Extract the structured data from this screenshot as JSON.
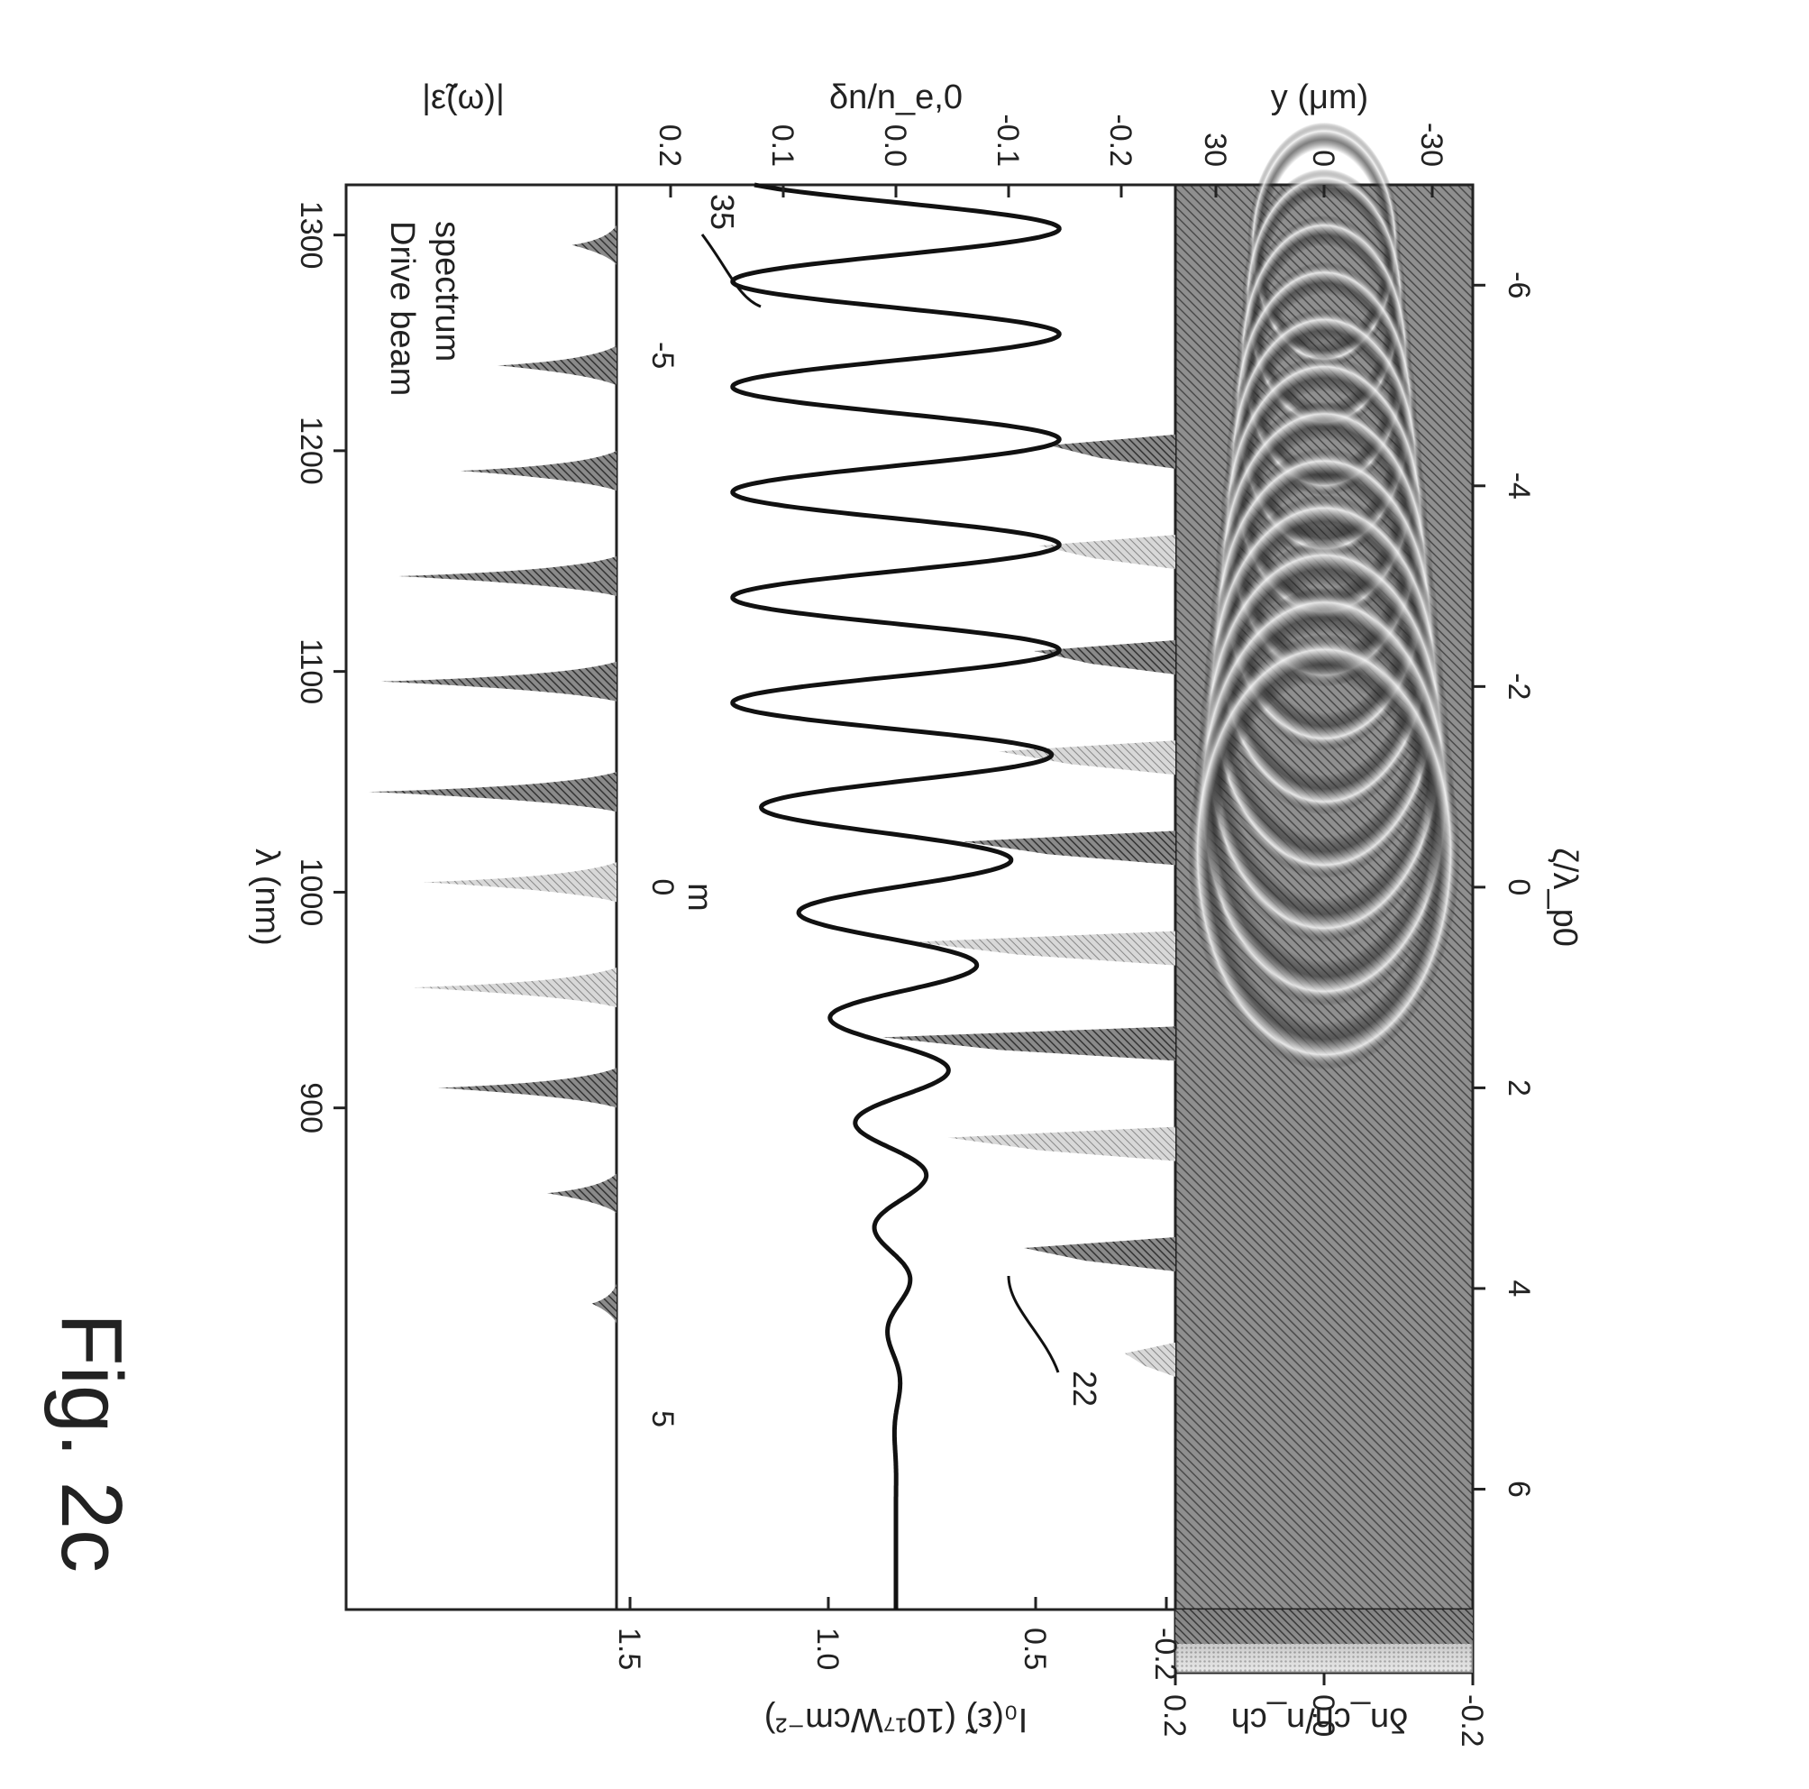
{
  "figure": {
    "title": "Fig. 2c"
  },
  "chart_data": [
    {
      "panel": "drive-beam-spectrum",
      "type": "area",
      "annotation": "Drive beam spectrum",
      "x_top_label": "λ (nm)",
      "x_top_ticks": [
        1300,
        1200,
        1100,
        1000,
        900
      ],
      "ylabel": "|ε̃(ω)|",
      "series": [
        {
          "color_group": "dark",
          "peaks": [
            {
              "x": -6.4,
              "h": 0.18
            },
            {
              "x": -5.2,
              "h": 0.48
            },
            {
              "x": -4.15,
              "h": 0.63
            },
            {
              "x": -3.1,
              "h": 0.88
            },
            {
              "x": -2.05,
              "h": 0.95
            },
            {
              "x": -0.95,
              "h": 1.0
            },
            {
              "x": 2.0,
              "h": 0.72
            },
            {
              "x": 3.05,
              "h": 0.28
            },
            {
              "x": 4.15,
              "h": 0.1
            }
          ]
        },
        {
          "color_group": "light",
          "peaks": [
            {
              "x": -0.05,
              "h": 0.78
            },
            {
              "x": 1.0,
              "h": 0.82
            }
          ]
        }
      ]
    },
    {
      "panel": "density-perturbation",
      "type": "line",
      "ylabel": "δn/n_e,0",
      "y_right_label": "I₀(ε̃) (10¹⁷Wcm⁻²)",
      "y_ticks": [
        0.2,
        0.1,
        0.0,
        -0.1,
        -0.2
      ],
      "y_right_ticks": [
        1.5,
        1.0,
        0.5,
        -0.2
      ],
      "m_label": "m",
      "m_ticks": [
        -5,
        0,
        5
      ],
      "series_labels": [
        "35",
        "22"
      ],
      "line_series": {
        "decay_start_x": -1.5,
        "decay_end_x": 6.2,
        "amplitude": 0.145,
        "period": 1.05
      },
      "stick_series": {
        "color_group": "mixed",
        "sticks": [
          {
            "x": -4.35,
            "h": 0.25
          },
          {
            "x": -3.35,
            "h": 0.27
          },
          {
            "x": -2.3,
            "h": 0.28
          },
          {
            "x": -1.3,
            "h": 0.35
          },
          {
            "x": -0.4,
            "h": 0.42
          },
          {
            "x": 0.6,
            "h": 0.52
          },
          {
            "x": 1.55,
            "h": 0.58
          },
          {
            "x": 2.55,
            "h": 0.45
          },
          {
            "x": 3.65,
            "h": 0.3
          },
          {
            "x": 4.7,
            "h": 0.1
          }
        ]
      }
    },
    {
      "panel": "wake-map",
      "type": "heatmap",
      "xlabel": "ζ/λ_p0",
      "ylabel": "y (μm)",
      "colorbar_label": "δn_ch/n_ch",
      "x_ticks": [
        -6,
        -4,
        -2,
        0,
        2,
        4,
        6
      ],
      "y_ticks": [
        30,
        0,
        -30
      ],
      "colorbar_ticks": [
        -0.2,
        0.0,
        0.2
      ]
    }
  ]
}
